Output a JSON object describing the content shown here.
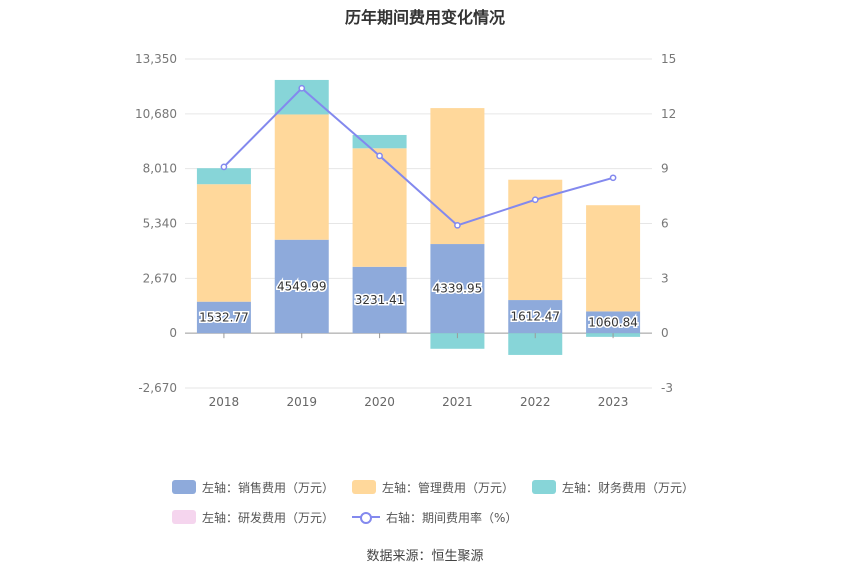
{
  "chart_data": {
    "type": "bar",
    "title": "历年期间费用变化情况",
    "categories": [
      "2018",
      "2019",
      "2020",
      "2021",
      "2022",
      "2023"
    ],
    "left_axis": {
      "min": -2670,
      "max": 13350,
      "ticks": [
        "-2,670",
        "0",
        "2,670",
        "5,340",
        "8,010",
        "10,680",
        "13,350"
      ],
      "tick_values": [
        -2670,
        0,
        2670,
        5340,
        8010,
        10680,
        13350
      ]
    },
    "right_axis": {
      "min": -3,
      "max": 15,
      "ticks": [
        "-3",
        "0",
        "3",
        "6",
        "9",
        "12",
        "15"
      ],
      "tick_values": [
        -3,
        0,
        3,
        6,
        9,
        12,
        15
      ]
    },
    "series": [
      {
        "name": "左轴：销售费用（万元）",
        "type": "bar",
        "axis": "left",
        "color": "#8eaadb",
        "values": [
          1532.77,
          4549.99,
          3231.41,
          4339.95,
          1612.47,
          1060.84
        ],
        "labels": [
          "1532.77",
          "4549.99",
          "3231.41",
          "4339.95",
          "1612.47",
          "1060.84"
        ]
      },
      {
        "name": "左轴：管理费用（万元）",
        "type": "bar",
        "axis": "left",
        "color": "#ffd89b",
        "values": [
          5720,
          6100,
          5770,
          6620,
          5860,
          5170
        ]
      },
      {
        "name": "左轴：财务费用（万元）",
        "type": "bar",
        "axis": "left",
        "color": "#87d5d8",
        "values": [
          780,
          1680,
          650,
          -760,
          -1060,
          -180
        ]
      },
      {
        "name": "左轴：研发费用（万元）",
        "type": "bar",
        "axis": "left",
        "color": "#f5d5ee",
        "values": [
          0,
          0,
          0,
          0,
          0,
          0
        ]
      },
      {
        "name": "右轴：期间费用率（%）",
        "type": "line",
        "axis": "right",
        "color": "#8389ee",
        "values": [
          9.1,
          13.4,
          9.7,
          5.9,
          7.3,
          8.5
        ]
      }
    ],
    "grid": true,
    "legend_position": "bottom"
  },
  "source": "数据来源：恒生聚源"
}
